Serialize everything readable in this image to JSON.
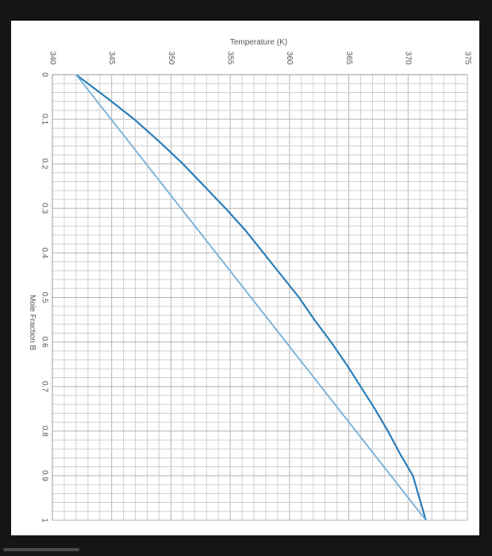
{
  "chart_data": {
    "type": "line",
    "xlabel": "Temperature (K)",
    "ylabel": "Mole Fraction B",
    "xlim": [
      340,
      375
    ],
    "ylim": [
      0,
      1
    ],
    "x_ticks": [
      "340",
      "345",
      "350",
      "355",
      "360",
      "365",
      "370",
      "375"
    ],
    "y_ticks": [
      "0",
      "0.1",
      "0.2",
      "0.3",
      "0.4",
      "0.5",
      "0.6",
      "0.7",
      "0.8",
      "0.9",
      "1"
    ],
    "grid": true,
    "series": [
      {
        "color": "#2a7db8",
        "points": [
          {
            "x": 342.0,
            "y": 0.0
          },
          {
            "x": 344.5,
            "y": 0.05
          },
          {
            "x": 346.9,
            "y": 0.1
          },
          {
            "x": 349.0,
            "y": 0.15
          },
          {
            "x": 351.0,
            "y": 0.2
          },
          {
            "x": 352.8,
            "y": 0.25
          },
          {
            "x": 354.6,
            "y": 0.3
          },
          {
            "x": 356.3,
            "y": 0.35
          },
          {
            "x": 357.8,
            "y": 0.4
          },
          {
            "x": 359.3,
            "y": 0.45
          },
          {
            "x": 360.8,
            "y": 0.5
          },
          {
            "x": 362.1,
            "y": 0.55
          },
          {
            "x": 363.5,
            "y": 0.6
          },
          {
            "x": 364.8,
            "y": 0.65
          },
          {
            "x": 366.0,
            "y": 0.7
          },
          {
            "x": 367.2,
            "y": 0.75
          },
          {
            "x": 368.3,
            "y": 0.8
          },
          {
            "x": 369.3,
            "y": 0.85
          },
          {
            "x": 370.4,
            "y": 0.9
          },
          {
            "x": 371.5,
            "y": 1.0
          }
        ]
      },
      {
        "color": "#74afd8",
        "points": [
          {
            "x": 342.0,
            "y": 0.0
          },
          {
            "x": 371.5,
            "y": 1.0
          }
        ]
      }
    ]
  }
}
